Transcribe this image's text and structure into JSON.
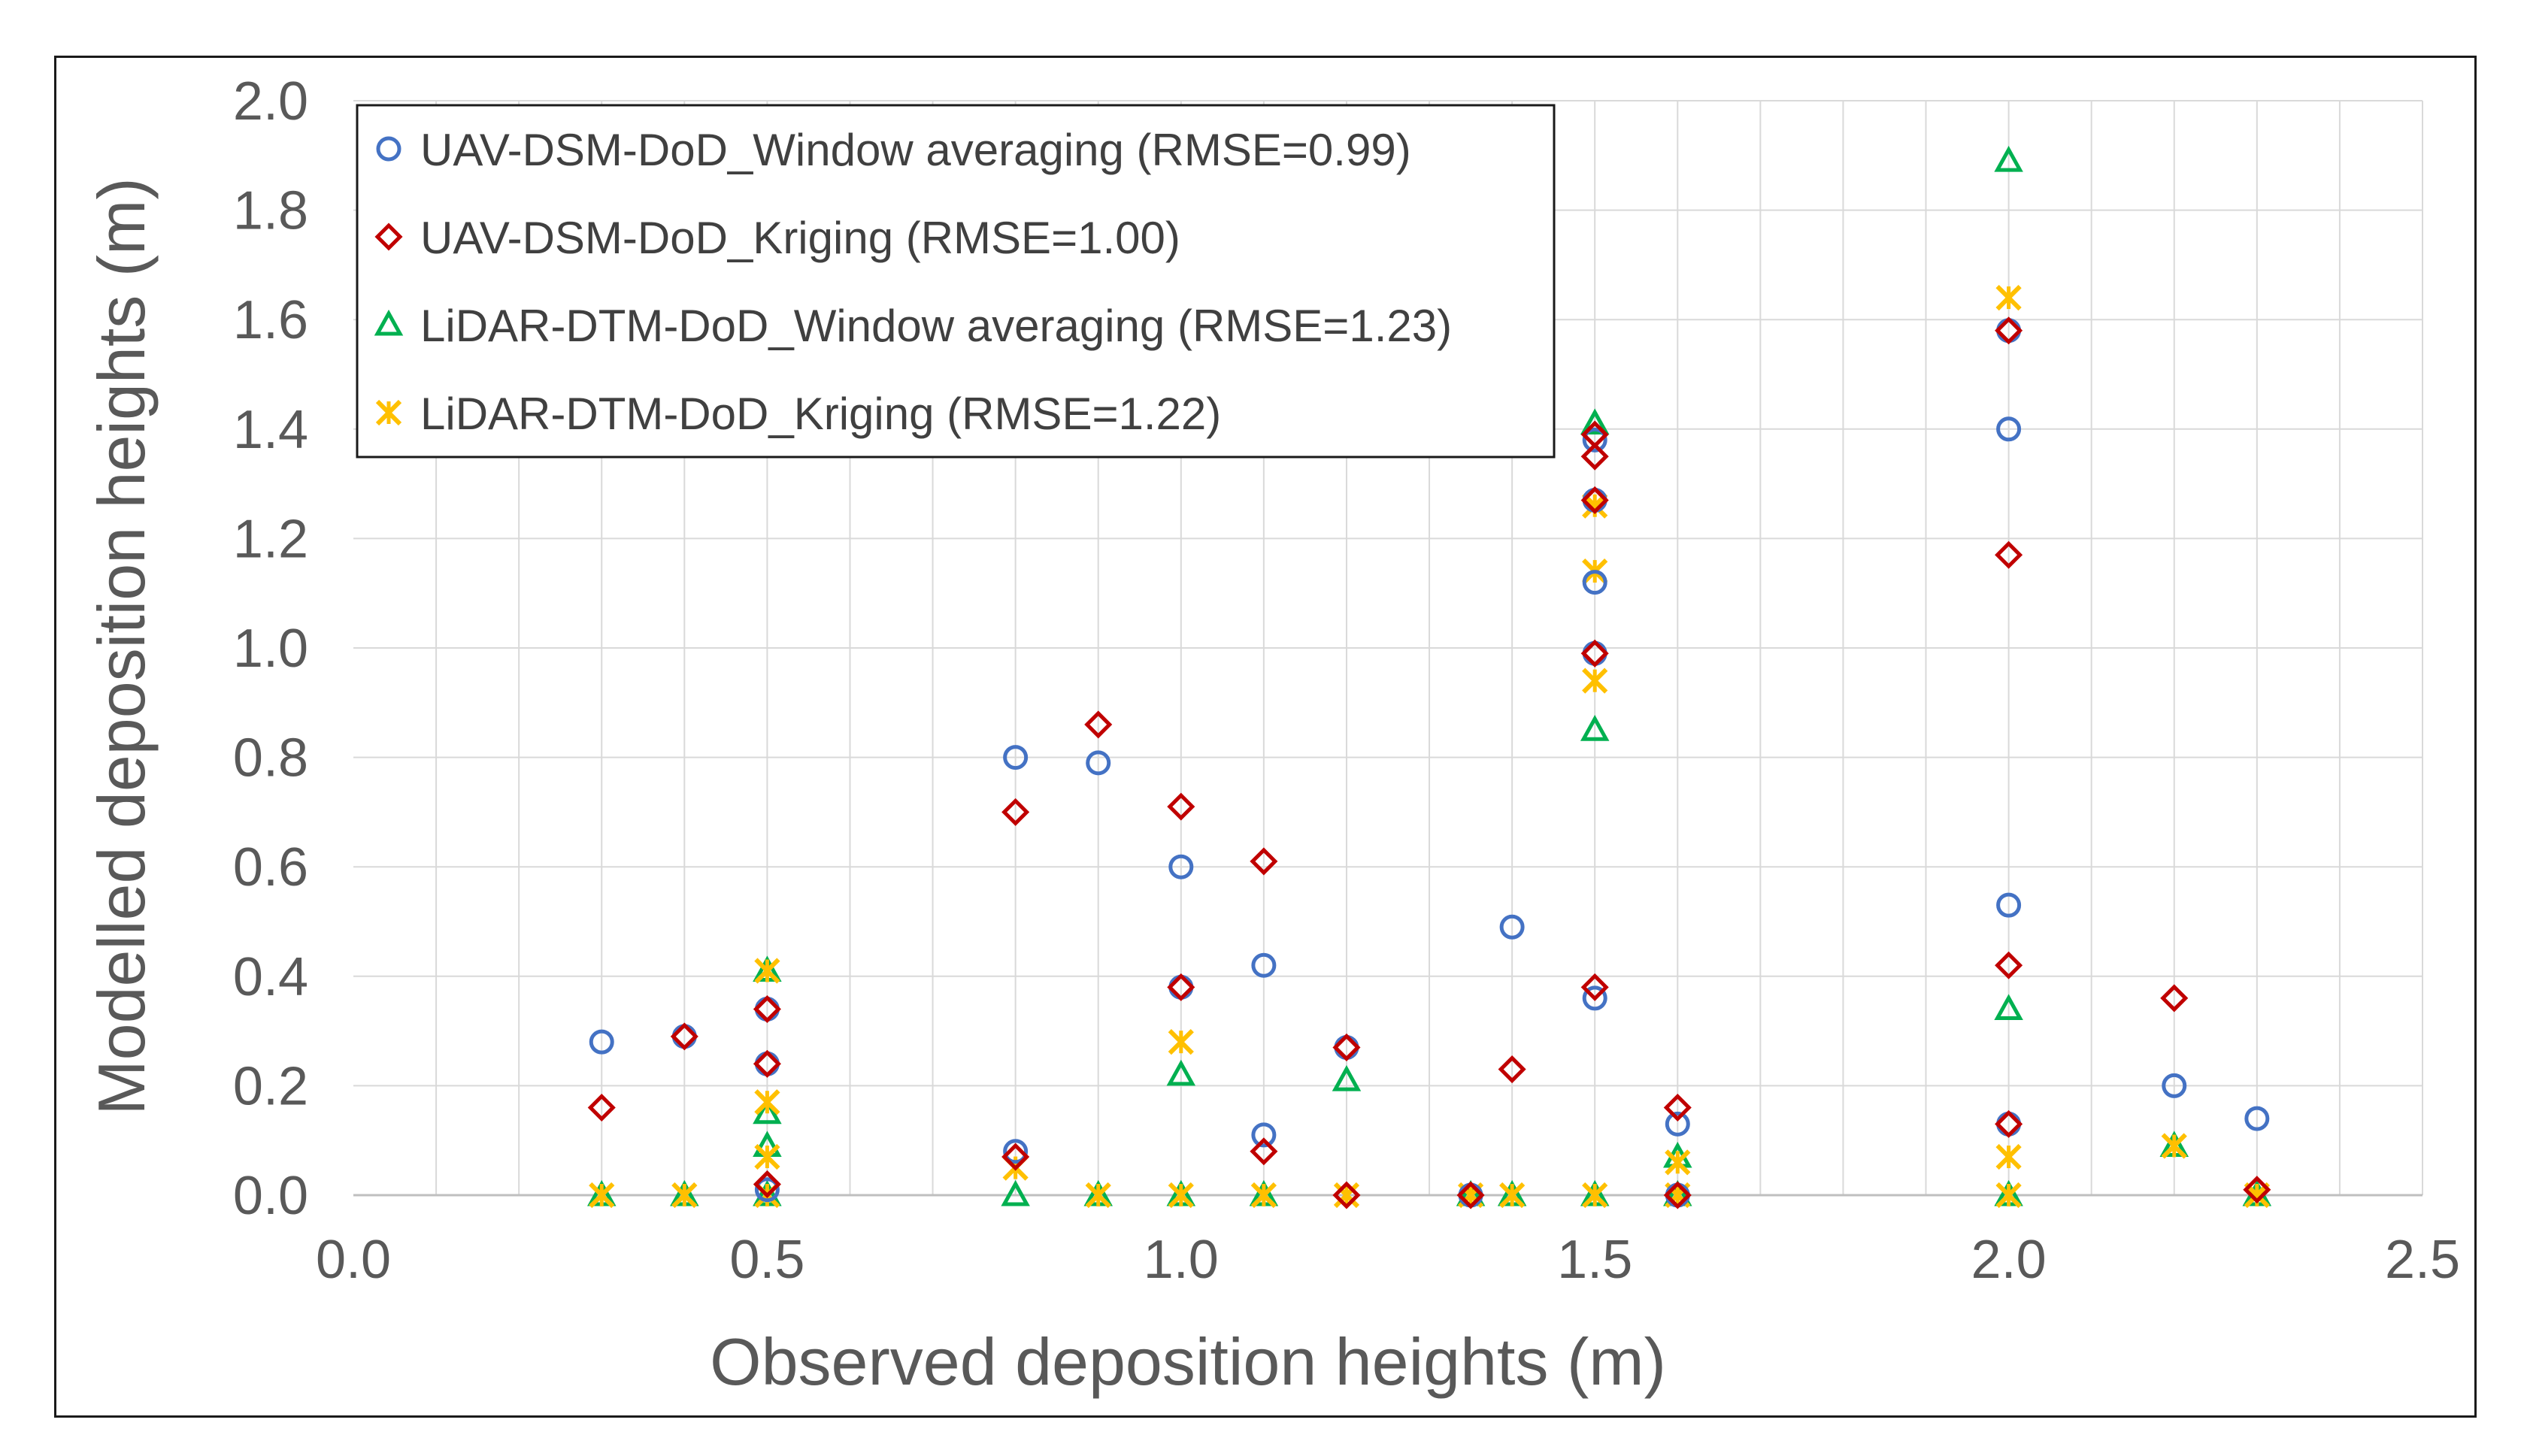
{
  "chart_data": {
    "type": "scatter",
    "title": "",
    "xlabel": "Observed deposition heights (m)",
    "ylabel": "Modelled deposition heights (m)",
    "xlim": [
      0.0,
      2.5
    ],
    "ylim": [
      0.0,
      2.0
    ],
    "x_ticks": [
      "0.0",
      "0.5",
      "1.0",
      "1.5",
      "2.0",
      "2.5"
    ],
    "y_ticks": [
      "0.0",
      "0.2",
      "0.4",
      "0.6",
      "0.8",
      "1.0",
      "1.2",
      "1.4",
      "1.6",
      "1.8",
      "2.0"
    ],
    "x_ticks_values": [
      0.0,
      0.5,
      1.0,
      1.5,
      2.0,
      2.5
    ],
    "y_ticks_values": [
      0.0,
      0.2,
      0.4,
      0.6,
      0.8,
      1.0,
      1.2,
      1.4,
      1.6,
      1.8,
      2.0
    ],
    "vertical_gridlines": [
      0.1,
      0.2,
      0.3,
      0.4,
      0.5,
      0.6,
      0.7,
      0.8,
      0.9,
      1.0,
      1.1,
      1.2,
      1.3,
      1.4,
      1.5,
      1.6,
      1.7,
      1.8,
      1.9,
      2.0,
      2.1,
      2.2,
      2.3,
      2.4
    ],
    "grid": true,
    "legend_position": "top-left",
    "series": [
      {
        "name": "UAV-DSM-DoD_Window averaging (RMSE=0.99)",
        "marker": "circle",
        "color": "#4472C4",
        "points": [
          [
            0.3,
            0.28
          ],
          [
            0.4,
            0.29
          ],
          [
            0.5,
            0.34
          ],
          [
            0.5,
            0.24
          ],
          [
            0.5,
            0.01
          ],
          [
            0.8,
            0.8
          ],
          [
            0.8,
            0.08
          ],
          [
            0.9,
            0.79
          ],
          [
            1.0,
            0.6
          ],
          [
            1.0,
            0.38
          ],
          [
            1.1,
            0.42
          ],
          [
            1.1,
            0.11
          ],
          [
            1.2,
            0.27
          ],
          [
            1.35,
            0.0
          ],
          [
            1.4,
            0.49
          ],
          [
            1.5,
            1.38
          ],
          [
            1.5,
            1.27
          ],
          [
            1.5,
            1.12
          ],
          [
            1.5,
            0.99
          ],
          [
            1.5,
            0.36
          ],
          [
            1.6,
            0.13
          ],
          [
            1.6,
            0.0
          ],
          [
            2.0,
            1.58
          ],
          [
            2.0,
            1.4
          ],
          [
            2.0,
            0.53
          ],
          [
            2.0,
            0.13
          ],
          [
            2.2,
            0.2
          ],
          [
            2.3,
            0.14
          ]
        ]
      },
      {
        "name": "UAV-DSM-DoD_Kriging (RMSE=1.00)",
        "marker": "diamond",
        "color": "#C00000",
        "points": [
          [
            0.3,
            0.16
          ],
          [
            0.4,
            0.29
          ],
          [
            0.5,
            0.34
          ],
          [
            0.5,
            0.24
          ],
          [
            0.5,
            0.02
          ],
          [
            0.8,
            0.7
          ],
          [
            0.8,
            0.07
          ],
          [
            0.9,
            0.86
          ],
          [
            1.0,
            0.71
          ],
          [
            1.0,
            0.38
          ],
          [
            1.1,
            0.61
          ],
          [
            1.1,
            0.08
          ],
          [
            1.2,
            0.27
          ],
          [
            1.2,
            0.0
          ],
          [
            1.35,
            0.0
          ],
          [
            1.4,
            0.23
          ],
          [
            1.5,
            1.39
          ],
          [
            1.5,
            1.35
          ],
          [
            1.5,
            1.27
          ],
          [
            1.5,
            0.99
          ],
          [
            1.5,
            0.38
          ],
          [
            1.6,
            0.16
          ],
          [
            1.6,
            0.0
          ],
          [
            2.0,
            1.58
          ],
          [
            2.0,
            1.17
          ],
          [
            2.0,
            0.42
          ],
          [
            2.0,
            0.13
          ],
          [
            2.2,
            0.36
          ],
          [
            2.3,
            0.01
          ]
        ]
      },
      {
        "name": "LiDAR-DTM-DoD_Window averaging (RMSE=1.23)",
        "marker": "triangle",
        "color": "#00B050",
        "points": [
          [
            0.3,
            0.0
          ],
          [
            0.4,
            0.0
          ],
          [
            0.5,
            0.41
          ],
          [
            0.5,
            0.15
          ],
          [
            0.5,
            0.09
          ],
          [
            0.5,
            0.0
          ],
          [
            0.8,
            0.0
          ],
          [
            0.9,
            0.0
          ],
          [
            1.0,
            0.22
          ],
          [
            1.0,
            0.0
          ],
          [
            1.1,
            0.0
          ],
          [
            1.2,
            0.21
          ],
          [
            1.35,
            0.0
          ],
          [
            1.4,
            0.0
          ],
          [
            1.5,
            1.41
          ],
          [
            1.5,
            0.85
          ],
          [
            1.5,
            0.0
          ],
          [
            1.6,
            0.07
          ],
          [
            1.6,
            0.0
          ],
          [
            2.0,
            1.89
          ],
          [
            2.0,
            0.34
          ],
          [
            2.0,
            0.0
          ],
          [
            2.2,
            0.09
          ],
          [
            2.3,
            0.0
          ]
        ]
      },
      {
        "name": "LiDAR-DTM-DoD_Kriging (RMSE=1.22)",
        "marker": "star",
        "color": "#FFC000",
        "points": [
          [
            0.3,
            0.0
          ],
          [
            0.4,
            0.0
          ],
          [
            0.5,
            0.41
          ],
          [
            0.5,
            0.17
          ],
          [
            0.5,
            0.07
          ],
          [
            0.5,
            0.0
          ],
          [
            0.8,
            0.05
          ],
          [
            0.9,
            0.0
          ],
          [
            1.0,
            0.28
          ],
          [
            1.0,
            0.0
          ],
          [
            1.1,
            0.0
          ],
          [
            1.2,
            0.0
          ],
          [
            1.35,
            0.0
          ],
          [
            1.4,
            0.0
          ],
          [
            1.5,
            1.26
          ],
          [
            1.5,
            1.14
          ],
          [
            1.5,
            0.94
          ],
          [
            1.5,
            0.0
          ],
          [
            1.6,
            0.06
          ],
          [
            1.6,
            0.0
          ],
          [
            2.0,
            1.64
          ],
          [
            2.0,
            0.07
          ],
          [
            2.0,
            0.0
          ],
          [
            2.2,
            0.09
          ],
          [
            2.3,
            0.0
          ]
        ]
      }
    ]
  },
  "colors": {
    "grid": "#D9D9D9",
    "axis": "#BFBFBF",
    "text": "#595959",
    "frame": "#1a1a1a"
  }
}
